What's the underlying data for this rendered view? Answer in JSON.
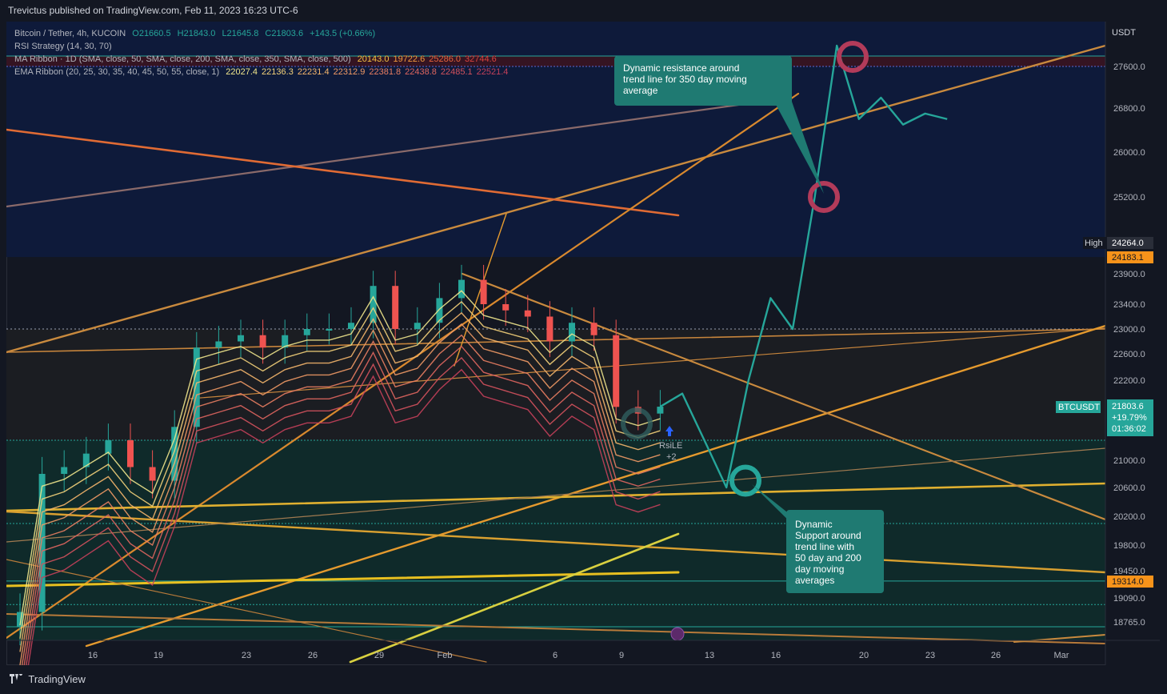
{
  "header": {
    "publisher": "Trevictus published on TradingView.com, Feb 11, 2023 16:23 UTC-6"
  },
  "footer": {
    "brand": "TradingView"
  },
  "colors": {
    "background": "#131722",
    "price_line": "#26a69a",
    "resistance_circle": "#b23b5a",
    "support_circle": "#26a69a",
    "callout_bg": "#1f7a72",
    "trend_orange": "#d9892e",
    "trend_yellow": "#e0b030"
  },
  "legend": {
    "symbol": {
      "label": "Bitcoin / Tether, 4h, KUCOIN",
      "open": "O21660.5",
      "high": "H21843.0",
      "low": "L21645.8",
      "close": "C21803.6",
      "change": "+143.5 (+0.66%)"
    },
    "rsi": {
      "label": "RSI Strategy (14, 30, 70)"
    },
    "ma_ribbon": {
      "label": "MA Ribbon · 1D (SMA, close, 50, SMA, close, 200, SMA, close, 350, SMA, close, 500)",
      "values": [
        "20143.0",
        "19722.6",
        "25286.0",
        "32744.6"
      ],
      "colors": [
        "#f5c242",
        "#f09a3e",
        "#e8643c",
        "#d9443f"
      ]
    },
    "ema_ribbon": {
      "label": "EMA Ribbon (20, 25, 30, 35, 40, 45, 50, 55, close, 1)",
      "values": [
        "22027.4",
        "22136.3",
        "22231.4",
        "22312.9",
        "22381.8",
        "22438.8",
        "22485.1",
        "22521.4"
      ],
      "colors": [
        "#f0e68c",
        "#f4d27a",
        "#f5b66c",
        "#f19a65",
        "#ea7e62",
        "#e0665f",
        "#d4525d",
        "#c4405a"
      ]
    }
  },
  "annotations": {
    "resistance_note": "Dynamic resistance around trend line for 350 day moving average",
    "support_note_lines": [
      "Dynamic",
      "Support around",
      "trend line with",
      "50 day and 200",
      "day moving",
      "averages"
    ],
    "signal": {
      "label": "RsiLE",
      "count": "+2"
    }
  },
  "chart_data": {
    "type": "line",
    "title": "Bitcoin / Tether, 4h, KUCOIN",
    "price_scale_unit": "USDT",
    "y_ticks": [
      27600,
      26800,
      26000,
      25200,
      23900,
      23400,
      23000,
      22600,
      22200,
      21000,
      20600,
      20200,
      19800,
      19450,
      19090,
      18765
    ],
    "x_ticks": [
      "16",
      "19",
      "23",
      "26",
      "29",
      "Feb",
      "6",
      "9",
      "13",
      "16",
      "20",
      "23",
      "26",
      "Mar"
    ],
    "price_labels": {
      "high_label": "High",
      "high_value": "24264.0",
      "ref_value": "24183.1",
      "symbol_tag": "BTCUSDT",
      "last_price": "21803.6",
      "last_change": "+19.79%",
      "countdown": "01:36:02",
      "low_ref_value": "19314.0"
    },
    "series": [
      {
        "name": "Bitcoin / Tether",
        "type": "candlestick",
        "x": [
          "Jan 13",
          "Jan 14",
          "Jan 15",
          "Jan 16",
          "Jan 17",
          "Jan 18",
          "Jan 19",
          "Jan 20",
          "Jan 21",
          "Jan 22",
          "Jan 23",
          "Jan 24",
          "Jan 25",
          "Jan 26",
          "Jan 27",
          "Jan 28",
          "Jan 29",
          "Jan 30",
          "Jan 31",
          "Feb 1",
          "Feb 2",
          "Feb 3",
          "Feb 4",
          "Feb 5",
          "Feb 6",
          "Feb 7",
          "Feb 8",
          "Feb 9",
          "Feb 10",
          "Feb 11"
        ],
        "values": [
          18900,
          20800,
          20900,
          21100,
          21300,
          20900,
          20700,
          21500,
          22700,
          22800,
          22900,
          22700,
          22900,
          23000,
          23000,
          23100,
          23700,
          23000,
          23100,
          23500,
          23800,
          23400,
          23300,
          23200,
          22800,
          23100,
          22900,
          21800,
          21700,
          21803.6
        ]
      },
      {
        "name": "Projection",
        "type": "line",
        "x": [
          "Feb 12",
          "Feb 13",
          "Feb 14",
          "Feb 15",
          "Feb 16",
          "Feb 17",
          "Feb 18",
          "Feb 19",
          "Feb 20",
          "Feb 21",
          "Feb 22",
          "Feb 23",
          "Feb 24"
        ],
        "values": [
          22000,
          21300,
          20600,
          22200,
          23500,
          23000,
          25200,
          28000,
          26600,
          27000,
          26500,
          26700,
          26600
        ]
      }
    ],
    "notes": [
      "Dynamic resistance around trend line for 350 day moving average",
      "Dynamic Support around trend line with 50 day and 200 day moving averages"
    ]
  }
}
